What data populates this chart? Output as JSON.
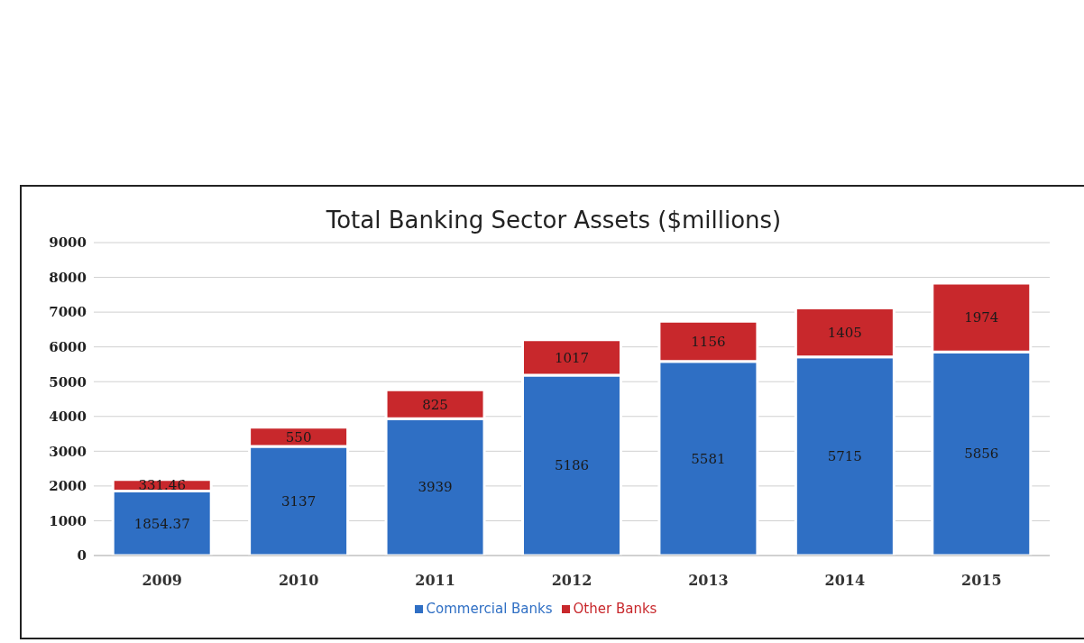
{
  "chart_data": {
    "type": "bar",
    "title": "Total Banking Sector Assets ($millions)",
    "categories": [
      "2009",
      "2010",
      "2011",
      "2012",
      "2013",
      "2014",
      "2015"
    ],
    "series": [
      {
        "name": "Commercial Banks",
        "color": "#2f6fc4",
        "values": [
          1854.37,
          3137,
          3939,
          5186,
          5581,
          5715,
          5856
        ]
      },
      {
        "name": "Other Banks",
        "color": "#c8282c",
        "values": [
          331.46,
          550,
          825,
          1017,
          1156,
          1405,
          1974
        ]
      }
    ],
    "stacked": true,
    "ylim": [
      0,
      9000
    ],
    "yticks": [
      0,
      1000,
      2000,
      3000,
      4000,
      5000,
      6000,
      7000,
      8000,
      9000
    ],
    "grid": "y",
    "legend": "bottom",
    "data_labels": true
  }
}
